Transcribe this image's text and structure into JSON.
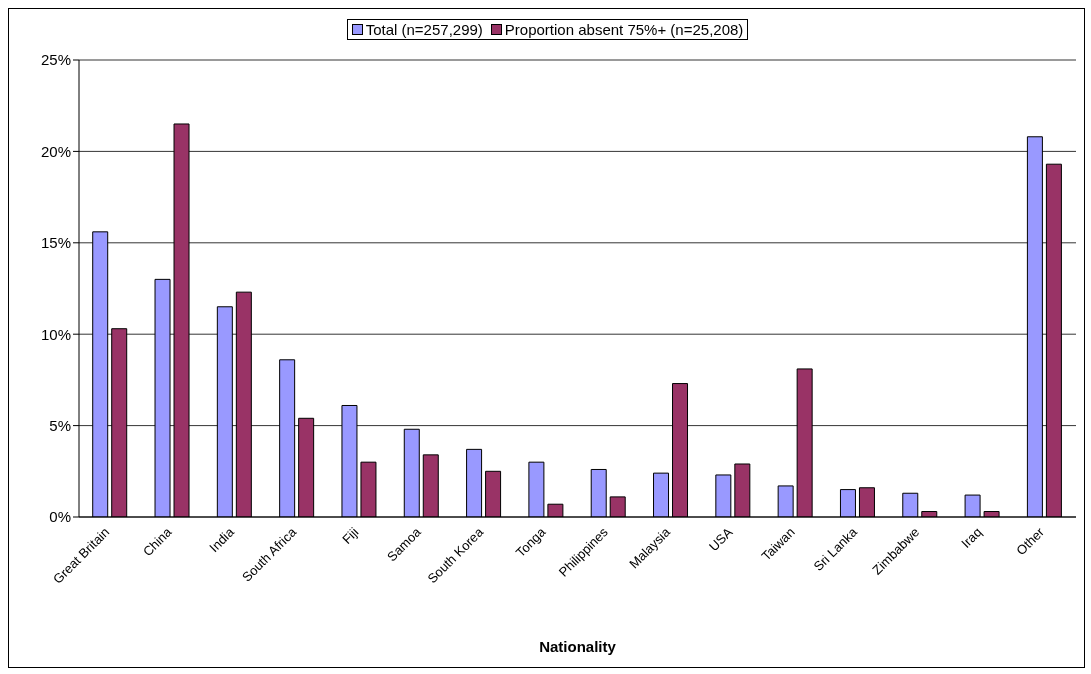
{
  "chart_data": {
    "type": "bar",
    "xlabel": "Nationality",
    "categories": [
      "Great Britain",
      "China",
      "India",
      "South Africa",
      "Fiji",
      "Samoa",
      "South Korea",
      "Tonga",
      "Philippines",
      "Malaysia",
      "USA",
      "Taiwan",
      "Sri Lanka",
      "Zimbabwe",
      "Iraq",
      "Other"
    ],
    "series": [
      {
        "name": "Total (n=257,299)",
        "color": "#9999ff",
        "values": [
          15.6,
          13.0,
          11.5,
          8.6,
          6.1,
          4.8,
          3.7,
          3.0,
          2.6,
          2.4,
          2.3,
          1.7,
          1.5,
          1.3,
          1.2,
          20.8
        ]
      },
      {
        "name": "Proportion absent 75%+ (n=25,208)",
        "color": "#993366",
        "values": [
          10.3,
          21.5,
          12.3,
          5.4,
          3.0,
          3.4,
          2.5,
          0.7,
          1.1,
          7.3,
          2.9,
          8.1,
          1.6,
          0.3,
          0.3,
          19.3
        ]
      }
    ],
    "ylim": [
      0,
      25
    ],
    "yticks": [
      {
        "value": 0,
        "label": "0%"
      },
      {
        "value": 5,
        "label": "5%"
      },
      {
        "value": 10,
        "label": "10%"
      },
      {
        "value": 15,
        "label": "15%"
      },
      {
        "value": 20,
        "label": "20%"
      },
      {
        "value": 25,
        "label": "25%"
      }
    ],
    "grid": "y",
    "legend": "top"
  }
}
